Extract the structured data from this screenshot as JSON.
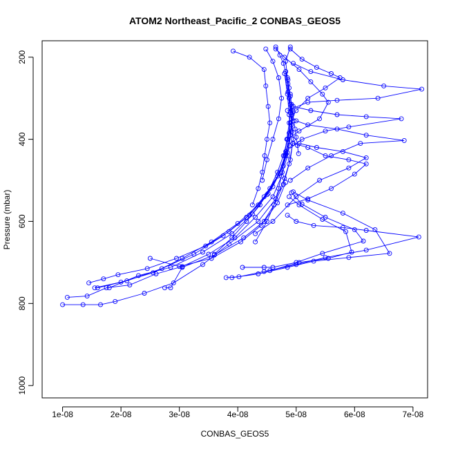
{
  "chart_data": {
    "type": "line",
    "title": "ATOM2 Northeast_Pacific_2 CONBAS_GEOS5",
    "xlabel": "CONBAS_GEOS5",
    "ylabel": "Pressure (mbar)",
    "xlim": [
      6.5e-09,
      7.25e-08
    ],
    "ylim": [
      1030,
      160
    ],
    "y_reversed": true,
    "x_ticks": [
      1e-08,
      2e-08,
      3e-08,
      4e-08,
      5e-08,
      6e-08,
      7e-08
    ],
    "x_tick_labels": [
      "1e-08",
      "2e-08",
      "3e-08",
      "4e-08",
      "5e-08",
      "6e-08",
      "7e-08"
    ],
    "y_ticks": [
      200,
      400,
      600,
      800,
      1000
    ],
    "y_tick_labels": [
      "200",
      "400",
      "600",
      "800",
      "1000"
    ],
    "grid": false,
    "legend": "none",
    "marker": "open-circle",
    "color": "#0000ff",
    "series": [
      {
        "x": [
          1e-08,
          1.35e-08,
          1.65e-08,
          1.9e-08,
          2.4e-08,
          2.9e-08,
          3.4e-08,
          3.85e-08,
          4.35e-08,
          4.65e-08,
          4.8e-08,
          4.9e-08,
          4.95e-08,
          4.92e-08,
          4.88e-08,
          4.85e-08,
          4.82e-08,
          4.9e-08
        ],
        "y": [
          803,
          803,
          803,
          795,
          775,
          750,
          705,
          655,
          600,
          545,
          495,
          450,
          400,
          350,
          300,
          250,
          210,
          175
        ]
      },
      {
        "x": [
          1.08e-08,
          1.42e-08,
          1.75e-08,
          2.15e-08,
          2.6e-08,
          3.05e-08,
          3.5e-08,
          3.95e-08,
          4.3e-08,
          4.6e-08,
          4.75e-08,
          4.85e-08,
          4.9e-08,
          4.88e-08,
          4.85e-08,
          4.8e-08
        ],
        "y": [
          785,
          782,
          762,
          755,
          728,
          710,
          680,
          640,
          590,
          540,
          490,
          440,
          390,
          340,
          290,
          240
        ]
      },
      {
        "x": [
          1.45e-08,
          1.7e-08,
          1.95e-08,
          2.45e-08,
          2.95e-08,
          3.45e-08,
          3.85e-08,
          4.2e-08,
          4.5e-08,
          4.7e-08,
          4.82e-08,
          4.88e-08,
          4.9e-08,
          4.86e-08,
          4.82e-08
        ],
        "y": [
          750,
          740,
          730,
          715,
          690,
          660,
          625,
          585,
          535,
          485,
          435,
          385,
          335,
          285,
          235
        ]
      },
      {
        "x": [
          1.55e-08,
          2e-08,
          2.55e-08,
          3.05e-08,
          3.55e-08,
          4e-08,
          4.35e-08,
          4.6e-08,
          4.78e-08,
          4.88e-08,
          4.92e-08,
          4.9e-08,
          4.86e-08
        ],
        "y": [
          762,
          748,
          725,
          690,
          650,
          605,
          560,
          515,
          465,
          415,
          365,
          315,
          265
        ]
      },
      {
        "x": [
          1.6e-08,
          2.1e-08,
          2.7e-08,
          3.25e-08,
          3.75e-08,
          4.15e-08,
          4.45e-08,
          4.68e-08,
          4.82e-08,
          4.9e-08,
          4.93e-08,
          4.9e-08
        ],
        "y": [
          762,
          745,
          715,
          680,
          635,
          590,
          540,
          490,
          440,
          390,
          340,
          290
        ]
      },
      {
        "x": [
          1.8e-08,
          2.3e-08,
          2.85e-08,
          3.4e-08,
          3.9e-08,
          4.25e-08,
          4.52e-08,
          4.72e-08,
          4.85e-08,
          4.92e-08,
          4.95e-08
        ],
        "y": [
          762,
          732,
          712,
          675,
          630,
          582,
          532,
          482,
          432,
          382,
          332
        ]
      },
      {
        "x": [
          2.5e-08,
          3e-08,
          3.55e-08,
          4.05e-08,
          4.4e-08,
          4.62e-08,
          4.78e-08,
          4.88e-08,
          4.94e-08
        ],
        "y": [
          690,
          710,
          690,
          650,
          610,
          560,
          510,
          460,
          410
        ]
      },
      {
        "x": [
          2.75e-08,
          2.85e-08,
          3.05e-08,
          3.6e-08,
          4.1e-08,
          4.45e-08,
          4.68e-08,
          4.82e-08
        ],
        "y": [
          762,
          762,
          712,
          682,
          640,
          600,
          555,
          505
        ]
      },
      {
        "x": [
          3.8e-08,
          4.02e-08,
          4.45e-08,
          5e-08,
          5.5e-08,
          6.2e-08,
          7.1e-08,
          6.2e-08,
          5.8e-08,
          5.3e-08,
          5e-08,
          4.85e-08
        ],
        "y": [
          737,
          735,
          722,
          705,
          688,
          670,
          638,
          622,
          615,
          610,
          600,
          585
        ]
      },
      {
        "x": [
          3.9e-08,
          4.35e-08,
          4.85e-08,
          5.3e-08,
          5.9e-08,
          6.6e-08,
          6.35e-08,
          5.8e-08,
          5.2e-08,
          4.95e-08
        ],
        "y": [
          737,
          728,
          712,
          697,
          688,
          678,
          620,
          580,
          548,
          528
        ]
      },
      {
        "x": [
          4.08e-08,
          4.45e-08,
          4.6e-08,
          5e-08,
          5.45e-08,
          6.15e-08,
          6e-08,
          5.5e-08,
          5.1e-08,
          4.92e-08
        ],
        "y": [
          712,
          712,
          712,
          700,
          678,
          648,
          620,
          590,
          558,
          530
        ]
      },
      {
        "x": [
          4.55e-08,
          5.05e-08,
          5.55e-08,
          5.95e-08,
          5.85e-08,
          5.45e-08,
          5.05e-08,
          4.88e-08
        ],
        "y": [
          720,
          700,
          690,
          675,
          625,
          595,
          560,
          540
        ]
      },
      {
        "x": [
          4.85e-08,
          5.2e-08,
          5.6e-08,
          6e-08,
          6.2e-08,
          5.9e-08,
          5.5e-08,
          5.2e-08,
          4.95e-08
        ],
        "y": [
          560,
          545,
          520,
          485,
          460,
          450,
          440,
          420,
          410
        ]
      },
      {
        "x": [
          4.3e-08,
          4.6e-08,
          5e-08,
          5.4e-08,
          5.9e-08,
          6.2e-08,
          5.8e-08,
          5.35e-08,
          5.05e-08
        ],
        "y": [
          630,
          600,
          540,
          500,
          470,
          445,
          430,
          420,
          410
        ]
      },
      {
        "x": [
          4.9e-08,
          5.2e-08,
          5.6e-08,
          6.1e-08,
          6.85e-08,
          6.2e-08,
          5.7e-08,
          5.2e-08,
          5e-08
        ],
        "y": [
          500,
          470,
          440,
          410,
          403,
          390,
          375,
          365,
          355
        ]
      },
      {
        "x": [
          4.82e-08,
          5.1e-08,
          5.5e-08,
          5.9e-08,
          6.8e-08,
          6.2e-08,
          5.7e-08,
          5.25e-08,
          4.95e-08
        ],
        "y": [
          430,
          400,
          380,
          370,
          350,
          345,
          340,
          330,
          320
        ]
      },
      {
        "x": [
          4.85e-08,
          5.2e-08,
          5.7e-08,
          6.4e-08,
          7.15e-08,
          6.5e-08,
          5.8e-08,
          5.25e-08,
          4.95e-08
        ],
        "y": [
          330,
          310,
          305,
          300,
          278,
          270,
          255,
          235,
          215
        ]
      },
      {
        "x": [
          3.92e-08,
          4.2e-08,
          4.45e-08,
          4.48e-08,
          4.52e-08,
          4.55e-08,
          4.5e-08,
          4.46e-08,
          4.42e-08,
          4.35e-08,
          4.25e-08
        ],
        "y": [
          185,
          200,
          230,
          270,
          320,
          360,
          400,
          440,
          480,
          520,
          560
        ]
      },
      {
        "x": [
          4.48e-08,
          4.6e-08,
          4.7e-08,
          4.75e-08,
          4.7e-08,
          4.6e-08,
          4.5e-08,
          4.42e-08
        ],
        "y": [
          180,
          210,
          250,
          300,
          350,
          400,
          450,
          500
        ]
      },
      {
        "x": [
          4.65e-08,
          4.8e-08,
          5.05e-08,
          5.25e-08,
          5.45e-08,
          5.55e-08,
          5.4e-08,
          5.05e-08,
          4.85e-08
        ],
        "y": [
          180,
          200,
          230,
          260,
          290,
          310,
          350,
          380,
          400
        ]
      },
      {
        "x": [
          4.9e-08,
          5.1e-08,
          5.35e-08,
          5.6e-08,
          5.75e-08,
          5.5e-08,
          5.2e-08,
          5e-08
        ],
        "y": [
          180,
          205,
          225,
          240,
          250,
          275,
          300,
          330
        ]
      },
      {
        "x": [
          4.65e-08,
          4.72e-08,
          4.78e-08,
          4.82e-08,
          4.86e-08,
          4.88e-08,
          4.9e-08,
          4.92e-08,
          4.94e-08,
          4.96e-08,
          4.98e-08,
          5e-08,
          5.02e-08,
          5.04e-08
        ],
        "y": [
          175,
          195,
          215,
          235,
          255,
          275,
          295,
          315,
          335,
          355,
          375,
          395,
          415,
          435
        ]
      },
      {
        "x": [
          4.3e-08,
          4.5e-08,
          4.62e-08,
          4.7e-08,
          4.76e-08,
          4.8e-08,
          4.84e-08,
          4.88e-08,
          4.92e-08
        ],
        "y": [
          650,
          600,
          560,
          520,
          480,
          440,
          400,
          360,
          320
        ]
      },
      {
        "x": [
          3.6e-08,
          3.9e-08,
          4.15e-08,
          4.38e-08,
          4.55e-08,
          4.68e-08,
          4.78e-08,
          4.85e-08,
          4.9e-08
        ],
        "y": [
          680,
          640,
          600,
          560,
          520,
          480,
          440,
          400,
          360
        ]
      }
    ]
  }
}
